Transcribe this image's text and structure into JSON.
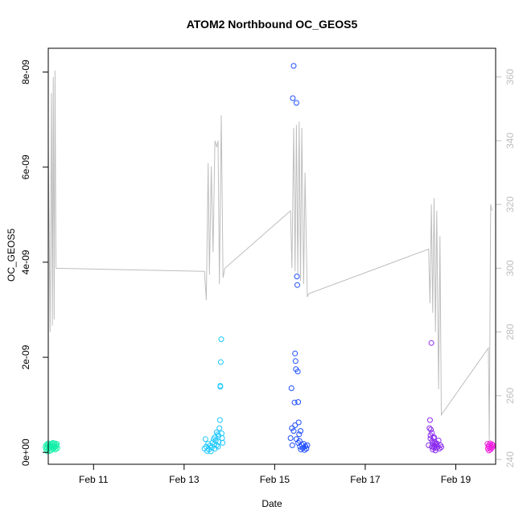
{
  "chart_data": {
    "type": "scatter",
    "title": "ATOM2 Northbound OC_GEOS5",
    "xlabel": "Date",
    "ylabel": "OC_GEOS5",
    "x_ticks": [
      {
        "day": 11,
        "label": "Feb 11"
      },
      {
        "day": 13,
        "label": "Feb 13"
      },
      {
        "day": 15,
        "label": "Feb 15"
      },
      {
        "day": 17,
        "label": "Feb 17"
      },
      {
        "day": 19,
        "label": "Feb 19"
      }
    ],
    "xlim": [
      10.0,
      19.88
    ],
    "y_ticks": [
      {
        "value": 0,
        "label": "0e+00"
      },
      {
        "value": 2e-09,
        "label": "2e-09"
      },
      {
        "value": 4e-09,
        "label": "4e-09"
      },
      {
        "value": 6e-09,
        "label": "6e-09"
      },
      {
        "value": 8e-09,
        "label": "8e-09"
      }
    ],
    "ylim": [
      -2.5e-10,
      8.5e-09
    ],
    "y2_ticks": [
      {
        "value": 240,
        "label": "240"
      },
      {
        "value": 260,
        "label": "260"
      },
      {
        "value": 280,
        "label": "280"
      },
      {
        "value": 300,
        "label": "300"
      },
      {
        "value": 320,
        "label": "320"
      },
      {
        "value": 340,
        "label": "340"
      },
      {
        "value": 360,
        "label": "360"
      }
    ],
    "y2lim": [
      238.5,
      369.0
    ],
    "grid": false,
    "legend": "none",
    "colors": {
      "axis": "#000000",
      "secondary_axis": "#bebebe",
      "secondary_line": "#bebebe"
    },
    "secondary_line": [
      [
        10.0,
        340
      ],
      [
        10.04,
        280
      ],
      [
        10.07,
        355
      ],
      [
        10.09,
        282
      ],
      [
        10.11,
        360
      ],
      [
        10.13,
        284
      ],
      [
        10.15,
        362
      ],
      [
        10.17,
        300
      ],
      [
        13.45,
        299
      ],
      [
        13.49,
        290
      ],
      [
        13.53,
        333
      ],
      [
        13.56,
        298
      ],
      [
        13.6,
        332
      ],
      [
        13.64,
        305
      ],
      [
        13.68,
        340
      ],
      [
        13.72,
        338
      ],
      [
        13.75,
        340
      ],
      [
        13.78,
        295
      ],
      [
        13.82,
        348
      ],
      [
        13.86,
        297
      ],
      [
        13.9,
        300
      ],
      [
        15.35,
        318
      ],
      [
        15.38,
        300
      ],
      [
        15.42,
        344
      ],
      [
        15.45,
        299
      ],
      [
        15.48,
        345
      ],
      [
        15.51,
        298
      ],
      [
        15.54,
        346
      ],
      [
        15.57,
        296
      ],
      [
        15.6,
        344
      ],
      [
        15.64,
        295
      ],
      [
        15.67,
        330
      ],
      [
        15.72,
        291
      ],
      [
        15.75,
        292
      ],
      [
        18.4,
        306
      ],
      [
        18.43,
        289
      ],
      [
        18.46,
        320
      ],
      [
        18.49,
        286
      ],
      [
        18.52,
        322
      ],
      [
        18.55,
        280
      ],
      [
        18.58,
        318
      ],
      [
        18.62,
        262
      ],
      [
        18.65,
        310
      ],
      [
        18.68,
        254
      ],
      [
        19.72,
        275
      ],
      [
        19.74,
        246
      ],
      [
        19.77,
        320
      ],
      [
        19.8,
        318
      ]
    ],
    "series": [
      {
        "color": "#12f0a8",
        "points": [
          [
            9.94,
            1.2e-10
          ],
          [
            9.95,
            6e-11
          ],
          [
            9.96,
            1.6e-10
          ],
          [
            9.97,
            9e-11
          ],
          [
            9.98,
            2e-11
          ],
          [
            9.99,
            1.5e-10
          ],
          [
            10.0,
            1.9e-10
          ],
          [
            10.01,
            8e-11
          ],
          [
            10.02,
            1.3e-10
          ],
          [
            10.03,
            3e-11
          ],
          [
            10.04,
            1.7e-10
          ],
          [
            10.05,
            1e-10
          ],
          [
            10.06,
            1.4e-10
          ],
          [
            10.07,
            5e-11
          ],
          [
            10.08,
            1.8e-10
          ],
          [
            10.09,
            1.1e-10
          ],
          [
            10.1,
            2e-10
          ],
          [
            10.11,
            7e-11
          ],
          [
            10.12,
            1.5e-10
          ],
          [
            10.13,
            1e-10
          ],
          [
            10.14,
            1.9e-10
          ],
          [
            10.15,
            1.2e-10
          ],
          [
            10.16,
            6e-11
          ],
          [
            10.17,
            1.6e-10
          ],
          [
            10.18,
            1.3e-10
          ],
          [
            10.19,
            1.8e-10
          ],
          [
            10.2,
            9e-11
          ]
        ]
      },
      {
        "color": "#1ec8ff",
        "points": [
          [
            13.45,
            8e-11
          ],
          [
            13.47,
            2.8e-10
          ],
          [
            13.49,
            1.2e-10
          ],
          [
            13.51,
            3e-11
          ],
          [
            13.53,
            1.8e-10
          ],
          [
            13.55,
            6e-11
          ],
          [
            13.57,
            1.4e-10
          ],
          [
            13.59,
            2e-11
          ],
          [
            13.61,
            1e-10
          ],
          [
            13.63,
            2.1e-10
          ],
          [
            13.65,
            2.8e-10
          ],
          [
            13.66,
            1.6e-10
          ],
          [
            13.68,
            3.2e-10
          ],
          [
            13.7,
            2.5e-10
          ],
          [
            13.72,
            4.2e-10
          ],
          [
            13.74,
            3.8e-10
          ],
          [
            13.75,
            1.2e-10
          ],
          [
            13.76,
            2.2e-10
          ],
          [
            13.78,
            5.1e-10
          ],
          [
            13.79,
            6.8e-10
          ],
          [
            13.8,
            1.4e-09
          ],
          [
            13.81,
            1.9e-09
          ],
          [
            13.82,
            2.38e-09
          ],
          [
            13.83,
            4e-10
          ],
          [
            13.84,
            3e-10
          ],
          [
            13.85,
            2e-10
          ],
          [
            13.8,
            1.38e-09
          ],
          [
            13.76,
            3.5e-10
          ],
          [
            13.72,
            1.5e-10
          ],
          [
            13.68,
            8e-11
          ]
        ]
      },
      {
        "color": "#1f4eff",
        "points": [
          [
            15.35,
            3e-10
          ],
          [
            15.37,
            1.35e-09
          ],
          [
            15.38,
            5.1e-10
          ],
          [
            15.39,
            1.5e-10
          ],
          [
            15.4,
            7.45e-09
          ],
          [
            15.42,
            8.13e-09
          ],
          [
            15.44,
            1.05e-09
          ],
          [
            15.45,
            2.08e-09
          ],
          [
            15.46,
            1.92e-09
          ],
          [
            15.47,
            1.75e-09
          ],
          [
            15.48,
            7.35e-09
          ],
          [
            15.49,
            3.7e-09
          ],
          [
            15.5,
            3.52e-09
          ],
          [
            15.51,
            1.7e-09
          ],
          [
            15.52,
            1.06e-09
          ],
          [
            15.53,
            6.3e-10
          ],
          [
            15.54,
            3.8e-10
          ],
          [
            15.55,
            2.4e-10
          ],
          [
            15.56,
            1.2e-10
          ],
          [
            15.57,
            4.5e-10
          ],
          [
            15.58,
            6e-11
          ],
          [
            15.6,
            1.6e-10
          ],
          [
            15.62,
            9e-11
          ],
          [
            15.64,
            1.8e-10
          ],
          [
            15.66,
            5e-11
          ],
          [
            15.68,
            1.3e-10
          ],
          [
            15.7,
            8e-11
          ],
          [
            15.72,
            1.5e-10
          ],
          [
            15.45,
            5.7e-10
          ],
          [
            15.42,
            4.5e-10
          ],
          [
            15.48,
            2.8e-10
          ],
          [
            15.52,
            2e-10
          ]
        ]
      },
      {
        "color": "#8a2bef",
        "points": [
          [
            18.4,
            1.5e-10
          ],
          [
            18.42,
            5.1e-10
          ],
          [
            18.43,
            6.8e-10
          ],
          [
            18.44,
            3.6e-10
          ],
          [
            18.45,
            4.8e-10
          ],
          [
            18.46,
            2.3e-09
          ],
          [
            18.47,
            1.2e-10
          ],
          [
            18.48,
            2.4e-10
          ],
          [
            18.49,
            6e-11
          ],
          [
            18.5,
            1.8e-10
          ],
          [
            18.51,
            3e-10
          ],
          [
            18.52,
            1e-10
          ],
          [
            18.53,
            1.4e-10
          ],
          [
            18.54,
            2.1e-10
          ],
          [
            18.55,
            4e-11
          ],
          [
            18.56,
            1.6e-10
          ],
          [
            18.57,
            9e-11
          ],
          [
            18.58,
            1.9e-10
          ],
          [
            18.6,
            1.2e-10
          ],
          [
            18.62,
            2.5e-10
          ],
          [
            18.64,
            8e-11
          ],
          [
            18.66,
            1.5e-10
          ],
          [
            18.68,
            1.1e-10
          ],
          [
            18.52,
            3.2e-10
          ],
          [
            18.44,
            2.9e-10
          ],
          [
            18.47,
            4.1e-10
          ]
        ]
      },
      {
        "color": "#ef1fe0",
        "points": [
          [
            19.7,
            1.8e-10
          ],
          [
            19.71,
            8e-11
          ],
          [
            19.72,
            1.3e-10
          ],
          [
            19.73,
            4e-11
          ],
          [
            19.74,
            1.6e-10
          ],
          [
            19.75,
            1e-10
          ],
          [
            19.76,
            1.9e-10
          ],
          [
            19.77,
            6e-11
          ],
          [
            19.78,
            1.4e-10
          ],
          [
            19.79,
            9e-11
          ],
          [
            19.8,
            1.7e-10
          ],
          [
            19.81,
            1.1e-10
          ],
          [
            19.82,
            1.5e-10
          ]
        ]
      }
    ]
  }
}
